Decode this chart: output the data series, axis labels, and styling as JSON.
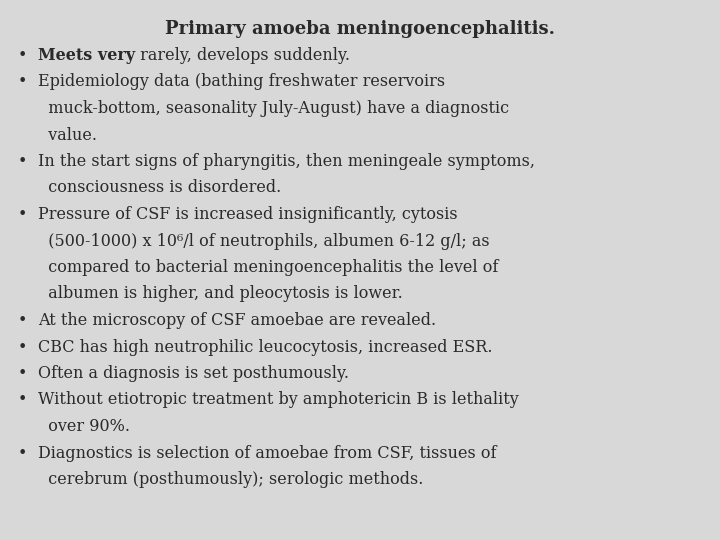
{
  "title": "Primary amoeba meningoencephalitis.",
  "background_color": "#d8d8d8",
  "text_color": "#2a2a2a",
  "font_size": 11.5,
  "title_font_size": 13.0,
  "font_family": "DejaVu Serif",
  "bullet_char": "•",
  "lines": [
    {
      "bold": "Meets very",
      "normal": " rarely, develops suddenly.",
      "continuation": false
    },
    {
      "bold": "",
      "normal": "Epidemiology data (bathing freshwater reservoirs",
      "continuation": false
    },
    {
      "bold": "",
      "normal": "  muck-bottom, seasonality July-August) have a diagnostic",
      "continuation": true
    },
    {
      "bold": "",
      "normal": "  value.",
      "continuation": true
    },
    {
      "bold": "",
      "normal": "In the start signs of pharyngitis, then meningeale symptoms,",
      "continuation": false
    },
    {
      "bold": "",
      "normal": "  consciousness is disordered.",
      "continuation": true
    },
    {
      "bold": "",
      "normal": "Pressure of CSF is increased insignificantly, cytosis",
      "continuation": false
    },
    {
      "bold": "",
      "normal": "  (500-1000) x 10⁶/l of neutrophils, albumen 6-12 g/l; as",
      "continuation": true
    },
    {
      "bold": "",
      "normal": "  compared to bacterial meningoencephalitis the level of",
      "continuation": true
    },
    {
      "bold": "",
      "normal": "  albumen is higher, and pleocytosis is lower.",
      "continuation": true
    },
    {
      "bold": "",
      "normal": "At the microscopy of CSF amoebae are revealed.",
      "continuation": false
    },
    {
      "bold": "",
      "normal": "CBC has high neutrophilic leucocytosis, increased ESR.",
      "continuation": false
    },
    {
      "bold": "",
      "normal": "Often a diagnosis is set posthumously.",
      "continuation": false
    },
    {
      "bold": "",
      "normal": "Without etiotropic treatment by amphotericin B is lethality",
      "continuation": false
    },
    {
      "bold": "",
      "normal": "  over 90%.",
      "continuation": true
    },
    {
      "bold": "",
      "normal": "Diagnostics is selection of amoebae from CSF, tissues of",
      "continuation": false
    },
    {
      "bold": "",
      "normal": "  cerebrum (posthumously); serologic methods.",
      "continuation": true
    }
  ]
}
